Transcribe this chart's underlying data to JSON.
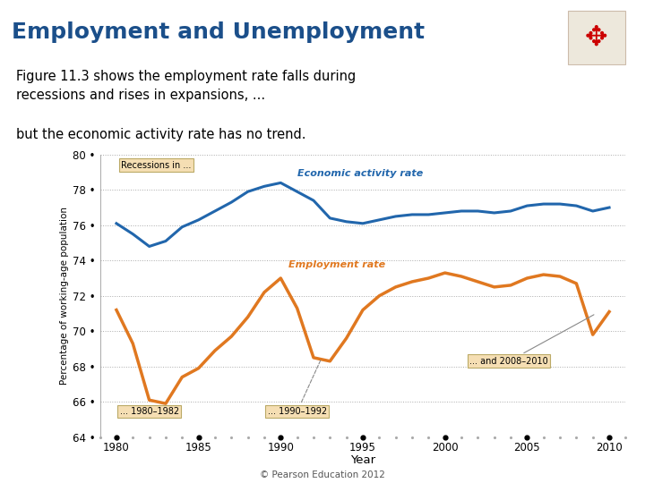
{
  "title": "Employment and Unemployment",
  "subtitle1": "Figure 11.3 shows the employment rate falls during\nrecessions and rises in expansions, ...",
  "subtitle2": "but the economic activity rate has no trend.",
  "copyright": "© Pearson Education 2012",
  "ylabel": "Percentage of working-age population",
  "xlabel": "Year",
  "ylim": [
    64,
    80
  ],
  "xlim": [
    1979,
    2011
  ],
  "yticks": [
    64,
    66,
    68,
    70,
    72,
    74,
    76,
    78,
    80
  ],
  "xticks": [
    1980,
    1985,
    1990,
    1995,
    2000,
    2005,
    2010
  ],
  "bg_color": "#FFFFFF",
  "title_color": "#1B4F8A",
  "economic_activity_color": "#2166AC",
  "employment_color": "#E07820",
  "economic_activity_years": [
    1980,
    1981,
    1982,
    1983,
    1984,
    1985,
    1986,
    1987,
    1988,
    1989,
    1990,
    1991,
    1992,
    1993,
    1994,
    1995,
    1996,
    1997,
    1998,
    1999,
    2000,
    2001,
    2002,
    2003,
    2004,
    2005,
    2006,
    2007,
    2008,
    2009,
    2010
  ],
  "economic_activity_values": [
    76.1,
    75.5,
    74.8,
    75.1,
    75.9,
    76.3,
    76.8,
    77.3,
    77.9,
    78.2,
    78.4,
    77.9,
    77.4,
    76.4,
    76.2,
    76.1,
    76.3,
    76.5,
    76.6,
    76.6,
    76.7,
    76.8,
    76.8,
    76.7,
    76.8,
    77.1,
    77.2,
    77.2,
    77.1,
    76.8,
    77.0
  ],
  "employment_years": [
    1980,
    1981,
    1982,
    1983,
    1984,
    1985,
    1986,
    1987,
    1988,
    1989,
    1990,
    1991,
    1992,
    1993,
    1994,
    1995,
    1996,
    1997,
    1998,
    1999,
    2000,
    2001,
    2002,
    2003,
    2004,
    2005,
    2006,
    2007,
    2008,
    2009,
    2010
  ],
  "employment_values": [
    71.2,
    69.3,
    66.1,
    65.9,
    67.4,
    67.9,
    68.9,
    69.7,
    70.8,
    72.2,
    73.0,
    71.3,
    68.5,
    68.3,
    69.6,
    71.2,
    72.0,
    72.5,
    72.8,
    73.0,
    73.3,
    73.1,
    72.8,
    72.5,
    72.6,
    73.0,
    73.2,
    73.1,
    72.7,
    69.8,
    71.1
  ],
  "recessions_label": "Recessions in ...",
  "recession_label_1980": "... 1980–1982",
  "recession_label_1990": "... 1990–1992",
  "recession_label_2008": "... and 2008–2010",
  "recession_box_color": "#F5DEB3",
  "recession_box_edge": "#BBAA66"
}
